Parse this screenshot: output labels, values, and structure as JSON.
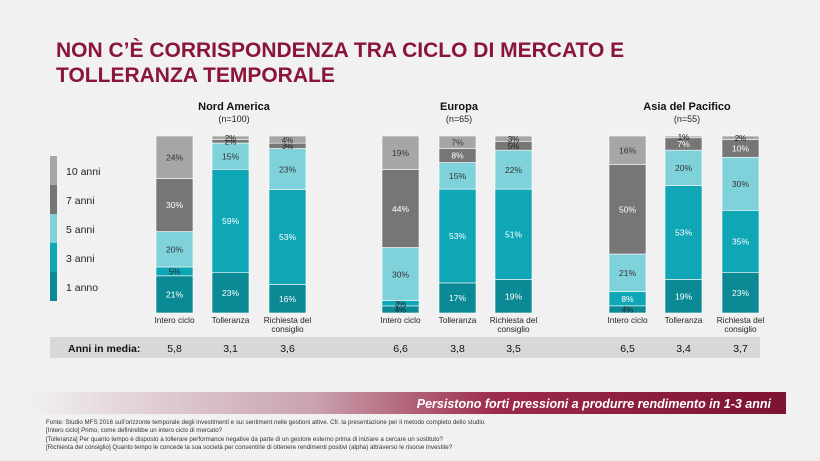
{
  "title_lines": [
    "NON C’È CORRISPONDENZA TRA CICLO DI MERCATO E",
    "TOLLERANZA TEMPORALE"
  ],
  "colors": {
    "10 anni": "#a6a6a6",
    "7 anni": "#767676",
    "5 anni": "#7fd1da",
    "3 anni": "#0fa7b6",
    "1 anno": "#0b8a96",
    "title": "#8a1538",
    "avg_row": "#d8d8d8"
  },
  "chart_data": {
    "type": "bar",
    "stacked": true,
    "unit": "%",
    "legend": [
      "10 anni",
      "7 anni",
      "5 anni",
      "3 anni",
      "1 anno"
    ],
    "legend_placement": "left",
    "categories": [
      "Intero ciclo",
      "Tolleranza",
      "Richiesta del consiglio"
    ],
    "avg_label": "Anni in media:",
    "regions": [
      {
        "name": "Nord America",
        "n": "(n=100)",
        "bars": [
          {
            "category": "Intero ciclo",
            "values": {
              "1 anno": 21,
              "3 anni": 5,
              "5 anni": 20,
              "7 anni": 30,
              "10 anni": 24
            }
          },
          {
            "category": "Tolleranza",
            "values": {
              "1 anno": 23,
              "3 anni": 59,
              "5 anni": 15,
              "7 anni": 2,
              "10 anni": 2
            }
          },
          {
            "category": "Richiesta del consiglio",
            "values": {
              "1 anno": 16,
              "3 anni": 53,
              "5 anni": 23,
              "7 anni": 3,
              "10 anni": 4
            }
          }
        ],
        "averages": [
          "5,8",
          "3,1",
          "3,6"
        ]
      },
      {
        "name": "Europa",
        "n": "(n=65)",
        "bars": [
          {
            "category": "Intero ciclo",
            "values": {
              "1 anno": 4,
              "3 anni": 3,
              "5 anni": 30,
              "7 anni": 44,
              "10 anni": 19
            }
          },
          {
            "category": "Tolleranza",
            "values": {
              "1 anno": 17,
              "3 anni": 53,
              "5 anni": 15,
              "7 anni": 8,
              "10 anni": 7
            }
          },
          {
            "category": "Richiesta del consiglio",
            "values": {
              "1 anno": 19,
              "3 anni": 51,
              "5 anni": 22,
              "7 anni": 5,
              "10 anni": 3
            }
          }
        ],
        "averages": [
          "6,6",
          "3,8",
          "3,5"
        ]
      },
      {
        "name": "Asia del Pacifico",
        "n": "(n=55)",
        "bars": [
          {
            "category": "Intero ciclo",
            "values": {
              "1 anno": 4,
              "3 anni": 8,
              "5 anni": 21,
              "7 anni": 50,
              "10 anni": 16
            }
          },
          {
            "category": "Tolleranza",
            "values": {
              "1 anno": 19,
              "3 anni": 53,
              "5 anni": 20,
              "7 anni": 7,
              "10 anni": 1
            }
          },
          {
            "category": "Richiesta del consiglio",
            "values": {
              "1 anno": 23,
              "3 anni": 35,
              "5 anni": 30,
              "7 anni": 10,
              "10 anni": 2
            }
          }
        ],
        "averages": [
          "6,5",
          "3,4",
          "3,7"
        ]
      }
    ]
  },
  "banner": "Persistono forti pressioni a produrre rendimento in 1-3 anni",
  "footnotes": [
    "Fonte: Studio MFS 2016 sull’orizzonte temporale degli investimenti e sui sentiment nelle gestioni attive. Cfr. la presentazione per il metodo completo dello studio.",
    "[Intero ciclo] Primo, come definirebbe un intero ciclo di mercato?",
    "[Tolleranza] Per quanto tempo è disposto a tollerare performance negative da parte di un gestore esterno prima di iniziare a cercare un sostituto?",
    "[Richiesta del consiglio] Quanto tempo le concede la sua società per consentirle di ottenere rendimenti positivi (alpha) attraverso le risorse investite?"
  ]
}
